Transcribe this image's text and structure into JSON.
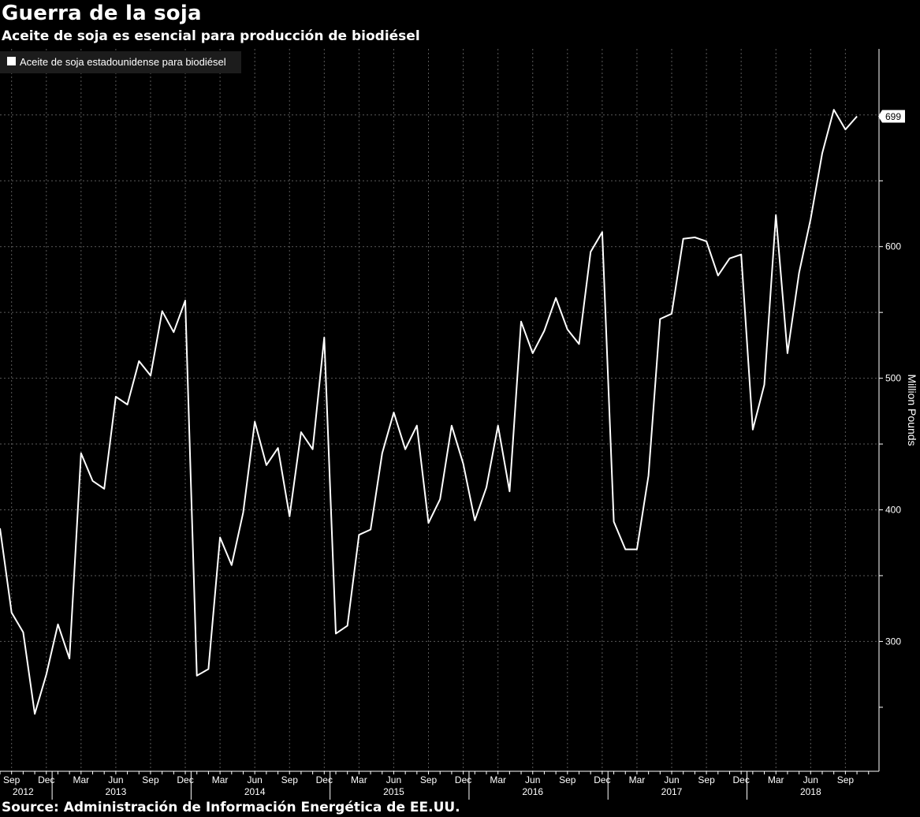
{
  "header": {
    "title": "Guerra de la soja",
    "subtitle": "Aceite de soja es esencial para producción de biodiésel"
  },
  "footer": {
    "source": "Source: Administración de Información Energética de EE.UU."
  },
  "colors": {
    "background": "#000000",
    "line": "#ffffff",
    "grid": "#5a5a5a",
    "text": "#ffffff"
  },
  "chart_data": {
    "type": "line",
    "title": "Guerra de la soja",
    "subtitle": "Aceite de soja es esencial para producción de biodiésel",
    "ylabel": "Million Pounds",
    "xlabel": "",
    "grid": true,
    "legend_position": "top-left",
    "ylim": [
      250,
      700
    ],
    "yticks": [
      300,
      400,
      500,
      600
    ],
    "last_value_label": "699",
    "x_tick_labels": [
      {
        "month": "Sep",
        "index": 1
      },
      {
        "month": "Dec",
        "index": 4
      },
      {
        "month": "Mar",
        "index": 7
      },
      {
        "month": "Jun",
        "index": 10
      },
      {
        "month": "Sep",
        "index": 13
      },
      {
        "month": "Dec",
        "index": 16
      },
      {
        "month": "Mar",
        "index": 19
      },
      {
        "month": "Jun",
        "index": 22
      },
      {
        "month": "Sep",
        "index": 25
      },
      {
        "month": "Dec",
        "index": 28
      },
      {
        "month": "Mar",
        "index": 31
      },
      {
        "month": "Jun",
        "index": 34
      },
      {
        "month": "Sep",
        "index": 37
      },
      {
        "month": "Dec",
        "index": 40
      },
      {
        "month": "Mar",
        "index": 43
      },
      {
        "month": "Jun",
        "index": 46
      },
      {
        "month": "Sep",
        "index": 49
      },
      {
        "month": "Dec",
        "index": 52
      },
      {
        "month": "Mar",
        "index": 55
      },
      {
        "month": "Jun",
        "index": 58
      },
      {
        "month": "Sep",
        "index": 61
      },
      {
        "month": "Dec",
        "index": 64
      },
      {
        "month": "Mar",
        "index": 67
      },
      {
        "month": "Jun",
        "index": 70
      },
      {
        "month": "Sep",
        "index": 73
      }
    ],
    "year_labels": [
      {
        "year": "2012",
        "index": 2
      },
      {
        "year": "2013",
        "index": 10
      },
      {
        "year": "2014",
        "index": 22
      },
      {
        "year": "2015",
        "index": 34
      },
      {
        "year": "2016",
        "index": 46
      },
      {
        "year": "2017",
        "index": 58
      },
      {
        "year": "2018",
        "index": 70
      }
    ],
    "series": [
      {
        "name": "Aceite de soja estadounidense para biodiésel",
        "color": "#ffffff",
        "values": [
          386,
          322,
          307,
          245,
          275,
          313,
          287,
          443,
          422,
          416,
          486,
          480,
          513,
          502,
          551,
          535,
          559,
          274,
          279,
          379,
          358,
          398,
          467,
          434,
          447,
          395,
          459,
          446,
          531,
          306,
          312,
          381,
          385,
          443,
          474,
          446,
          464,
          390,
          408,
          464,
          435,
          392,
          417,
          464,
          414,
          543,
          519,
          536,
          561,
          537,
          526,
          596,
          611,
          391,
          370,
          370,
          426,
          545,
          549,
          606,
          607,
          604,
          578,
          591,
          594,
          461,
          495,
          624,
          519,
          580,
          621,
          671,
          704,
          689,
          699
        ]
      }
    ]
  }
}
